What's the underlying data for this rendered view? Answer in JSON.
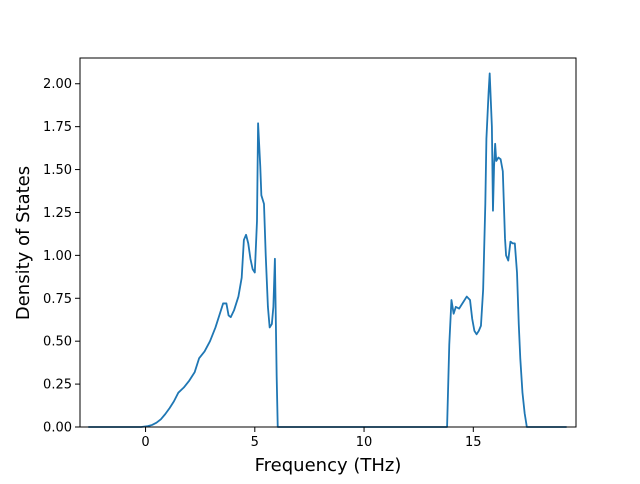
{
  "chart_data": {
    "type": "line",
    "title": "",
    "xlabel": "Frequency (THz)",
    "ylabel": "Density of States",
    "xlim": [
      -3.0,
      19.7
    ],
    "ylim": [
      0.0,
      2.15
    ],
    "x_ticks": [
      {
        "value": 0,
        "label": "0"
      },
      {
        "value": 5,
        "label": "5"
      },
      {
        "value": 10,
        "label": "10"
      },
      {
        "value": 15,
        "label": "15"
      }
    ],
    "y_ticks": [
      {
        "value": 0.0,
        "label": "0.00"
      },
      {
        "value": 0.25,
        "label": "0.25"
      },
      {
        "value": 0.5,
        "label": "0.50"
      },
      {
        "value": 0.75,
        "label": "0.75"
      },
      {
        "value": 1.0,
        "label": "1.00"
      },
      {
        "value": 1.25,
        "label": "1.25"
      },
      {
        "value": 1.5,
        "label": "1.50"
      },
      {
        "value": 1.75,
        "label": "1.75"
      },
      {
        "value": 2.0,
        "label": "2.00"
      }
    ],
    "grid": false,
    "legend": "none",
    "series": [
      {
        "color": "#1f77b4",
        "points": [
          [
            -2.6,
            0.0
          ],
          [
            -0.2,
            0.0
          ],
          [
            0.1,
            0.005
          ],
          [
            0.3,
            0.012
          ],
          [
            0.5,
            0.025
          ],
          [
            0.7,
            0.045
          ],
          [
            0.9,
            0.075
          ],
          [
            1.1,
            0.11
          ],
          [
            1.3,
            0.15
          ],
          [
            1.5,
            0.2
          ],
          [
            1.75,
            0.23
          ],
          [
            2.0,
            0.27
          ],
          [
            2.25,
            0.32
          ],
          [
            2.45,
            0.4
          ],
          [
            2.7,
            0.44
          ],
          [
            2.95,
            0.5
          ],
          [
            3.2,
            0.58
          ],
          [
            3.4,
            0.66
          ],
          [
            3.55,
            0.72
          ],
          [
            3.7,
            0.72
          ],
          [
            3.8,
            0.65
          ],
          [
            3.9,
            0.64
          ],
          [
            4.05,
            0.68
          ],
          [
            4.25,
            0.76
          ],
          [
            4.4,
            0.87
          ],
          [
            4.5,
            1.09
          ],
          [
            4.6,
            1.12
          ],
          [
            4.7,
            1.07
          ],
          [
            4.8,
            0.98
          ],
          [
            4.9,
            0.92
          ],
          [
            5.0,
            0.9
          ],
          [
            5.1,
            1.2
          ],
          [
            5.15,
            1.77
          ],
          [
            5.25,
            1.52
          ],
          [
            5.3,
            1.35
          ],
          [
            5.42,
            1.3
          ],
          [
            5.5,
            1.0
          ],
          [
            5.6,
            0.7
          ],
          [
            5.68,
            0.58
          ],
          [
            5.78,
            0.6
          ],
          [
            5.85,
            0.7
          ],
          [
            5.92,
            0.98
          ],
          [
            6.0,
            0.3
          ],
          [
            6.05,
            0.0
          ],
          [
            13.8,
            0.0
          ],
          [
            13.9,
            0.48
          ],
          [
            14.0,
            0.74
          ],
          [
            14.1,
            0.66
          ],
          [
            14.2,
            0.7
          ],
          [
            14.35,
            0.69
          ],
          [
            14.55,
            0.73
          ],
          [
            14.7,
            0.76
          ],
          [
            14.85,
            0.74
          ],
          [
            14.95,
            0.63
          ],
          [
            15.05,
            0.56
          ],
          [
            15.15,
            0.54
          ],
          [
            15.25,
            0.56
          ],
          [
            15.35,
            0.59
          ],
          [
            15.45,
            0.8
          ],
          [
            15.55,
            1.3
          ],
          [
            15.6,
            1.68
          ],
          [
            15.7,
            1.95
          ],
          [
            15.75,
            2.06
          ],
          [
            15.85,
            1.75
          ],
          [
            15.9,
            1.26
          ],
          [
            15.95,
            1.52
          ],
          [
            16.0,
            1.65
          ],
          [
            16.05,
            1.55
          ],
          [
            16.15,
            1.57
          ],
          [
            16.25,
            1.56
          ],
          [
            16.35,
            1.49
          ],
          [
            16.45,
            1.1
          ],
          [
            16.5,
            1.0
          ],
          [
            16.6,
            0.97
          ],
          [
            16.7,
            1.08
          ],
          [
            16.8,
            1.07
          ],
          [
            16.9,
            1.07
          ],
          [
            17.0,
            0.9
          ],
          [
            17.08,
            0.6
          ],
          [
            17.15,
            0.4
          ],
          [
            17.25,
            0.2
          ],
          [
            17.35,
            0.08
          ],
          [
            17.45,
            0.0
          ],
          [
            19.25,
            0.0
          ]
        ]
      }
    ]
  },
  "style": {
    "line_color": "#1f77b4",
    "axis_color": "#000000",
    "background": "#ffffff"
  }
}
